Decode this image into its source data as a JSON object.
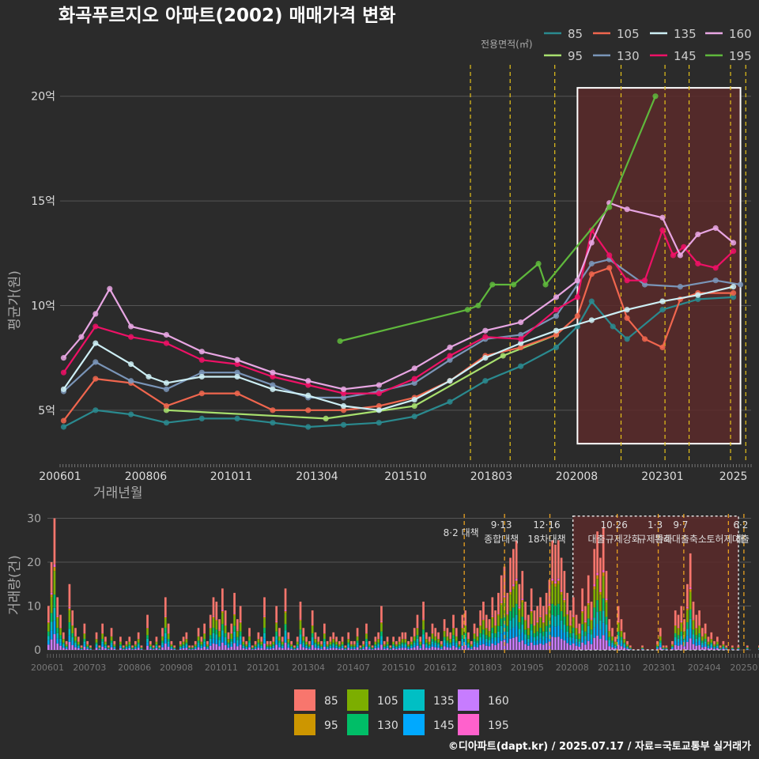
{
  "title": "화곡푸르지오 아파트(2002) 매매가격 변화",
  "footer": "©디아파트(dapt.kr) / 2025.07.17 / 자료=국토교통부 실거래가",
  "colors": {
    "background": "#2b2b2b",
    "grid": "#555555",
    "highlight_fill": "#5a2a2a",
    "highlight_border": "#ffffff",
    "event_line": "#e5c21a"
  },
  "chart_data": [
    {
      "type": "line",
      "title": "화곡푸르지오 아파트(2002) 매매가격 변화",
      "xlabel": "거래년월",
      "ylabel": "평균가(원)",
      "ylim": [
        2.5,
        21.5
      ],
      "xlim": [
        2006.0,
        2025.5
      ],
      "y_ticks": [
        5,
        10,
        15,
        20
      ],
      "y_tick_labels": [
        "5억",
        "10억",
        "15억",
        "20억"
      ],
      "x_ticks": [
        2006.0,
        2008.42,
        2010.83,
        2013.25,
        2015.75,
        2018.17,
        2020.58,
        2023.0,
        2025.0
      ],
      "x_tick_labels": [
        "200601",
        "200806",
        "201011",
        "201304",
        "201510",
        "201803",
        "202008",
        "202301",
        "2025"
      ],
      "legend_title": "전용면적(㎡)",
      "legend_position": "top-right",
      "highlight_range": {
        "x": [
          2020.6,
          2025.2
        ],
        "y": [
          3.4,
          20.4
        ]
      },
      "event_lines": [
        2017.58,
        2018.7,
        2019.96,
        2021.83,
        2023.07,
        2023.75,
        2024.92,
        2025.35
      ],
      "series": [
        {
          "name": "85",
          "color": "#2a8a8f",
          "x": [
            2006.1,
            2007.0,
            2008.0,
            2009.0,
            2010.0,
            2011.0,
            2012.0,
            2013.0,
            2014.0,
            2015.0,
            2016.0,
            2017.0,
            2018.0,
            2019.0,
            2020.0,
            2020.6,
            2021.0,
            2021.6,
            2022.0,
            2023.0,
            2024.0,
            2025.0
          ],
          "values": [
            4.2,
            5.0,
            4.8,
            4.4,
            4.6,
            4.6,
            4.4,
            4.2,
            4.3,
            4.4,
            4.7,
            5.4,
            6.4,
            7.1,
            8.0,
            9.0,
            10.2,
            9.0,
            8.4,
            9.8,
            10.3,
            10.4
          ]
        },
        {
          "name": "95",
          "color": "#a8e06e",
          "x": [
            2009.0,
            2013.5,
            2016.0,
            2018.5,
            2020.0
          ],
          "values": [
            5.0,
            4.6,
            5.2,
            7.6,
            8.6
          ]
        },
        {
          "name": "105",
          "color": "#f0664e",
          "x": [
            2006.1,
            2007.0,
            2008.0,
            2009.0,
            2010.0,
            2011.0,
            2012.0,
            2013.0,
            2014.0,
            2015.0,
            2016.0,
            2017.0,
            2018.0,
            2019.0,
            2020.0,
            2020.6,
            2021.0,
            2021.5,
            2022.0,
            2022.5,
            2023.0,
            2023.5,
            2024.0,
            2025.0
          ],
          "values": [
            4.5,
            6.5,
            6.3,
            5.2,
            5.8,
            5.8,
            5.0,
            5.0,
            5.0,
            5.2,
            5.6,
            6.4,
            7.6,
            8.0,
            8.6,
            9.5,
            11.5,
            11.8,
            9.4,
            8.4,
            8.0,
            10.3,
            10.6,
            10.6
          ]
        },
        {
          "name": "130",
          "color": "#7a95b8",
          "x": [
            2006.1,
            2007.0,
            2008.0,
            2009.0,
            2010.0,
            2011.0,
            2012.0,
            2013.0,
            2014.0,
            2015.0,
            2016.0,
            2017.0,
            2018.0,
            2019.0,
            2020.0,
            2021.0,
            2021.5,
            2022.5,
            2023.5,
            2024.5,
            2025.2
          ],
          "values": [
            5.9,
            7.3,
            6.4,
            6.0,
            6.8,
            6.8,
            6.2,
            5.6,
            5.6,
            5.9,
            6.3,
            7.4,
            8.4,
            8.6,
            9.5,
            12.0,
            12.2,
            11.0,
            10.9,
            11.2,
            11.0
          ]
        },
        {
          "name": "135",
          "color": "#cdeff5",
          "x": [
            2006.1,
            2007.0,
            2008.0,
            2008.5,
            2009.0,
            2010.0,
            2011.0,
            2012.0,
            2013.0,
            2014.0,
            2015.0,
            2016.0,
            2017.0,
            2018.0,
            2019.0,
            2020.0,
            2021.0,
            2022.0,
            2023.0,
            2024.0,
            2025.0
          ],
          "values": [
            6.0,
            8.2,
            7.2,
            6.6,
            6.3,
            6.6,
            6.6,
            6.0,
            5.7,
            5.2,
            5.0,
            5.5,
            6.4,
            7.5,
            8.2,
            8.8,
            9.3,
            9.8,
            10.2,
            10.5,
            10.9
          ]
        },
        {
          "name": "145",
          "color": "#ee1166",
          "x": [
            2006.1,
            2007.0,
            2008.0,
            2009.0,
            2010.0,
            2011.0,
            2012.0,
            2013.0,
            2014.0,
            2015.0,
            2016.0,
            2017.0,
            2018.0,
            2019.0,
            2020.0,
            2020.6,
            2021.0,
            2021.5,
            2022.0,
            2022.5,
            2023.0,
            2023.3,
            2023.6,
            2024.0,
            2024.5,
            2025.0
          ],
          "values": [
            6.8,
            9.0,
            8.5,
            8.2,
            7.4,
            7.2,
            6.6,
            6.2,
            5.8,
            5.8,
            6.5,
            7.6,
            8.5,
            8.4,
            9.8,
            10.4,
            13.6,
            12.4,
            11.2,
            11.2,
            13.6,
            12.4,
            12.8,
            12.0,
            11.8,
            12.6
          ]
        },
        {
          "name": "160",
          "color": "#e8a6e3",
          "x": [
            2006.1,
            2006.6,
            2007.0,
            2007.4,
            2008.0,
            2009.0,
            2010.0,
            2011.0,
            2012.0,
            2013.0,
            2014.0,
            2015.0,
            2016.0,
            2017.0,
            2018.0,
            2019.0,
            2020.0,
            2020.6,
            2021.0,
            2021.5,
            2022.0,
            2023.0,
            2023.5,
            2024.0,
            2024.5,
            2025.0
          ],
          "values": [
            7.5,
            8.5,
            9.6,
            10.8,
            9.0,
            8.6,
            7.8,
            7.4,
            6.8,
            6.4,
            6.0,
            6.2,
            7.0,
            8.0,
            8.8,
            9.2,
            10.4,
            11.2,
            13.0,
            14.9,
            14.6,
            14.2,
            12.4,
            13.4,
            13.7,
            13.0
          ]
        },
        {
          "name": "195",
          "color": "#5fb83c",
          "x": [
            2013.9,
            2017.5,
            2017.8,
            2018.2,
            2018.8,
            2019.5,
            2019.7,
            2021.5,
            2022.8
          ],
          "values": [
            8.3,
            9.8,
            10.0,
            11.0,
            11.0,
            12.0,
            11.0,
            14.7,
            20.0
          ]
        }
      ]
    },
    {
      "type": "bar",
      "title": "거래량",
      "xlabel": "",
      "ylabel": "거래량(건)",
      "ylim": [
        0,
        31
      ],
      "y_ticks": [
        0,
        10,
        20,
        30
      ],
      "y_tick_labels": [
        "0",
        "10",
        "20",
        "30"
      ],
      "x_tick_labels": [
        "200601",
        "200703",
        "200806",
        "200908",
        "201011",
        "201201",
        "201304",
        "201407",
        "201510",
        "201612",
        "201803",
        "201905",
        "202008",
        "202110",
        "202301",
        "202404",
        "20250"
      ],
      "x_ticks": [
        2006.0,
        2007.17,
        2008.42,
        2009.58,
        2010.83,
        2012.0,
        2013.25,
        2014.5,
        2015.75,
        2016.92,
        2018.17,
        2019.33,
        2020.58,
        2021.75,
        2023.0,
        2024.25,
        2025.35
      ],
      "stack_order": [
        "85",
        "95",
        "105",
        "130",
        "135",
        "145",
        "160",
        "195"
      ],
      "stack_colors": {
        "85": "#f8766d",
        "95": "#cd9600",
        "105": "#7cae00",
        "130": "#00be67",
        "135": "#00bfc4",
        "145": "#00a9ff",
        "160": "#c77cff",
        "195": "#ff61cc"
      },
      "monthly_totals": [
        10,
        20,
        30,
        12,
        8,
        4,
        2,
        15,
        9,
        5,
        3,
        1,
        6,
        2,
        1,
        0,
        4,
        1,
        6,
        3,
        1,
        5,
        2,
        0,
        3,
        1,
        2,
        3,
        1,
        2,
        4,
        1,
        0,
        8,
        2,
        1,
        3,
        1,
        5,
        12,
        6,
        2,
        1,
        0,
        2,
        3,
        4,
        1,
        1,
        2,
        5,
        3,
        6,
        2,
        8,
        12,
        11,
        7,
        14,
        9,
        4,
        6,
        13,
        7,
        10,
        3,
        2,
        5,
        1,
        2,
        4,
        3,
        12,
        2,
        2,
        3,
        10,
        5,
        3,
        14,
        4,
        2,
        1,
        3,
        11,
        5,
        3,
        2,
        9,
        4,
        3,
        2,
        6,
        2,
        3,
        4,
        3,
        2,
        3,
        1,
        4,
        2,
        2,
        5,
        1,
        2,
        6,
        2,
        1,
        3,
        4,
        10,
        2,
        3,
        1,
        3,
        2,
        3,
        4,
        4,
        2,
        3,
        5,
        8,
        3,
        11,
        4,
        3,
        6,
        5,
        4,
        2,
        7,
        5,
        4,
        8,
        5,
        2,
        8,
        9,
        4,
        2,
        6,
        5,
        9,
        11,
        8,
        7,
        12,
        9,
        13,
        17,
        19,
        13,
        21,
        23,
        25,
        15,
        18,
        11,
        8,
        14,
        9,
        10,
        12,
        10,
        13,
        16,
        25,
        24,
        25,
        21,
        18,
        13,
        9,
        12,
        8,
        6,
        14,
        10,
        17,
        11,
        23,
        27,
        21,
        28,
        18,
        7,
        5,
        3,
        10,
        7,
        4,
        2,
        1,
        0,
        0,
        0,
        1,
        0,
        0,
        0,
        0,
        2,
        5,
        1,
        1,
        0,
        2,
        9,
        8,
        10,
        7,
        15,
        22,
        11,
        8,
        9,
        5,
        6,
        3,
        4,
        2,
        3,
        1,
        2,
        1,
        0,
        1,
        0,
        1,
        0,
        0,
        1,
        0,
        0,
        0,
        1,
        0,
        1,
        0,
        0,
        1,
        1,
        2,
        0,
        1,
        2,
        1,
        1,
        0,
        1,
        2,
        2,
        1,
        1,
        3,
        2,
        1,
        2,
        1,
        2,
        1,
        6,
        5,
        7,
        6,
        6,
        10,
        5
      ],
      "highlight_range": [
        2020.6,
        2025.2
      ],
      "event_lines": [
        2017.58,
        2018.7,
        2019.96,
        2021.83,
        2022.97,
        2023.68,
        2024.92,
        2025.35
      ],
      "annotations": [
        {
          "x": 2017.58,
          "lines": [
            "8·2 대책"
          ]
        },
        {
          "x": 2018.7,
          "lines": [
            "9·13",
            "종합대책"
          ]
        },
        {
          "x": 2019.96,
          "lines": [
            "12·16",
            "18차대책"
          ]
        },
        {
          "x": 2021.83,
          "lines": [
            "10·26",
            "대출규제강화"
          ]
        },
        {
          "x": 2022.97,
          "lines": [
            "1·3",
            "규제완화"
          ]
        },
        {
          "x": 2023.68,
          "lines": [
            "9·7",
            "특례대출축소"
          ]
        },
        {
          "x": 2024.92,
          "lines": [
            "",
            "토허제 해"
          ]
        },
        {
          "x": 2025.35,
          "lines": [
            "6·2",
            "대출"
          ]
        }
      ]
    }
  ]
}
